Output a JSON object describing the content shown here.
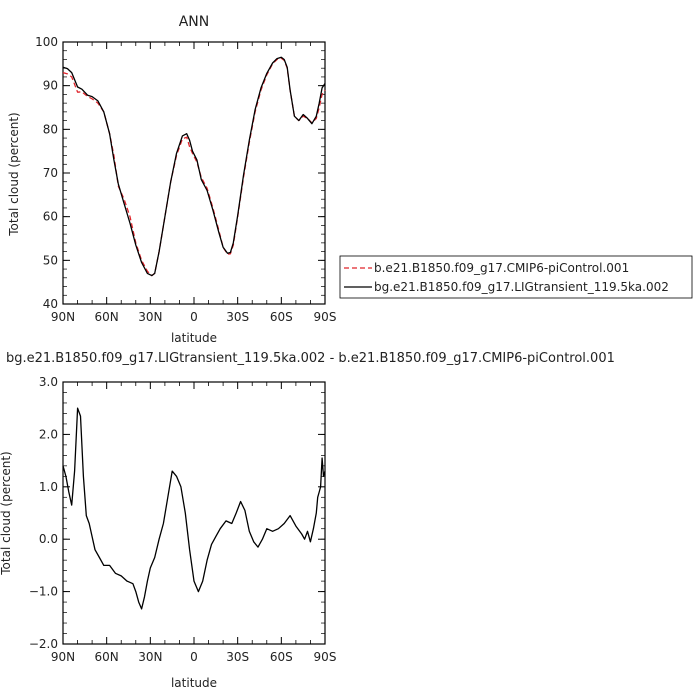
{
  "chart_data": [
    {
      "type": "line",
      "title": "ANN",
      "xlabel": "latitude",
      "ylabel": "Total cloud (percent)",
      "xlim": [
        90,
        -90
      ],
      "ylim": [
        40,
        100
      ],
      "x_ticks": [
        {
          "value": 90,
          "label": "90N"
        },
        {
          "value": 60,
          "label": "60N"
        },
        {
          "value": 30,
          "label": "30N"
        },
        {
          "value": 0,
          "label": "0"
        },
        {
          "value": -30,
          "label": "30S"
        },
        {
          "value": -60,
          "label": "60S"
        },
        {
          "value": -90,
          "label": "90S"
        }
      ],
      "y_ticks": [
        40,
        50,
        60,
        70,
        80,
        90,
        100
      ],
      "y_tick_labels": [
        "40",
        "50",
        "60",
        "70",
        "80",
        "90",
        "100"
      ],
      "legend_placement": "right",
      "series": [
        {
          "name": "b.e21.B1850.f09_g17.CMIP6-piControl.001",
          "color": "#e0242b",
          "dashed": true,
          "x": [
            90,
            87,
            84,
            80,
            77,
            73,
            70,
            66,
            62,
            58,
            55,
            52,
            48,
            44,
            40,
            36,
            32,
            29,
            27,
            24,
            20,
            16,
            12,
            8,
            5,
            3,
            1,
            -2,
            -5,
            -9,
            -13,
            -17,
            -20,
            -23,
            -25,
            -27,
            -30,
            -34,
            -38,
            -42,
            -46,
            -50,
            -54,
            -57,
            -60,
            -62,
            -64,
            -66,
            -69,
            -72,
            -75,
            -78,
            -81,
            -84,
            -86,
            -88,
            -90
          ],
          "y": [
            93,
            92.7,
            92,
            88.5,
            88.6,
            87.5,
            87,
            86,
            84,
            79,
            74,
            67,
            64,
            60,
            54,
            50,
            47.5,
            46.5,
            47,
            52,
            60,
            68,
            74,
            77.8,
            78.2,
            76,
            74.5,
            72.5,
            69,
            66.5,
            62,
            57,
            53,
            51.4,
            51.5,
            53.5,
            60,
            69,
            77,
            84,
            89,
            92.5,
            95,
            96,
            96.3,
            95.8,
            94,
            89,
            83,
            82,
            83,
            82.5,
            81.5,
            82.5,
            85,
            88,
            89
          ]
        },
        {
          "name": "bg.e21.B1850.f09_g17.LIGtransient_119.5ka.002",
          "color": "#000000",
          "dashed": false,
          "x": [
            90,
            87,
            84,
            80,
            77,
            73,
            70,
            66,
            62,
            58,
            55,
            52,
            48,
            44,
            40,
            36,
            32,
            29,
            27,
            24,
            20,
            16,
            12,
            8,
            5,
            3,
            1,
            -2,
            -5,
            -9,
            -13,
            -17,
            -20,
            -23,
            -25,
            -27,
            -30,
            -34,
            -38,
            -42,
            -46,
            -50,
            -54,
            -57,
            -60,
            -62,
            -64,
            -66,
            -69,
            -72,
            -75,
            -78,
            -81,
            -84,
            -86,
            -88,
            -90
          ],
          "y": [
            94.2,
            93.9,
            93,
            89.7,
            89.2,
            87.8,
            87.5,
            86.5,
            84,
            79,
            73,
            67.5,
            63,
            58.5,
            53.5,
            49.5,
            47,
            46.5,
            47,
            52,
            60,
            68,
            74.5,
            78.5,
            79,
            77.5,
            75,
            73,
            68.5,
            66,
            61.5,
            56.5,
            53,
            51.6,
            51.8,
            54,
            60.3,
            69.5,
            77.5,
            84.5,
            89.5,
            92.8,
            95.2,
            96.2,
            96.5,
            96,
            94.2,
            89,
            83,
            82,
            83.4,
            82.5,
            81.3,
            83,
            86,
            89.5,
            90.5
          ]
        }
      ]
    },
    {
      "type": "line",
      "title": "bg.e21.B1850.f09_g17.LIGtransient_119.5ka.002 - b.e21.B1850.f09_g17.CMIP6-piControl.001",
      "xlabel": "latitude",
      "ylabel": "Total cloud (percent)",
      "xlim": [
        90,
        -90
      ],
      "ylim": [
        -2,
        3
      ],
      "x_ticks": [
        {
          "value": 90,
          "label": "90N"
        },
        {
          "value": 60,
          "label": "60N"
        },
        {
          "value": 30,
          "label": "30N"
        },
        {
          "value": 0,
          "label": "0"
        },
        {
          "value": -30,
          "label": "30S"
        },
        {
          "value": -60,
          "label": "60S"
        },
        {
          "value": -90,
          "label": "90S"
        }
      ],
      "y_ticks": [
        -2,
        -1,
        0,
        1,
        2,
        3
      ],
      "y_tick_labels": [
        "−2.0",
        "−1.0",
        "0.0",
        "1.0",
        "2.0",
        "3.0"
      ],
      "series": [
        {
          "name": "",
          "color": "#000000",
          "dashed": false,
          "x": [
            90,
            88,
            86,
            84,
            82,
            80,
            78,
            76,
            74,
            72,
            70,
            68,
            65,
            62,
            58,
            54,
            50,
            46,
            42,
            40,
            38,
            36,
            34,
            32,
            30,
            27,
            24,
            21,
            18,
            15,
            12,
            9,
            6,
            3,
            0,
            -3,
            -6,
            -9,
            -12,
            -15,
            -18,
            -22,
            -26,
            -29,
            -32,
            -35,
            -38,
            -41,
            -44,
            -47,
            -50,
            -54,
            -58,
            -62,
            -66,
            -70,
            -74,
            -76,
            -78,
            -80,
            -82,
            -84,
            -85,
            -86,
            -87,
            -88,
            -89,
            -90
          ],
          "y": [
            1.4,
            1.2,
            0.9,
            0.65,
            1.3,
            2.5,
            2.35,
            1.2,
            0.45,
            0.3,
            0.05,
            -0.2,
            -0.35,
            -0.5,
            -0.5,
            -0.65,
            -0.7,
            -0.8,
            -0.85,
            -1.0,
            -1.2,
            -1.33,
            -1.1,
            -0.8,
            -0.55,
            -0.35,
            0.0,
            0.3,
            0.8,
            1.3,
            1.2,
            1.0,
            0.5,
            -0.2,
            -0.8,
            -1.0,
            -0.8,
            -0.4,
            -0.1,
            0.05,
            0.2,
            0.35,
            0.3,
            0.5,
            0.72,
            0.55,
            0.15,
            -0.05,
            -0.15,
            0.0,
            0.2,
            0.15,
            0.2,
            0.3,
            0.45,
            0.25,
            0.1,
            0.0,
            0.15,
            -0.05,
            0.2,
            0.5,
            0.8,
            0.9,
            1.0,
            1.55,
            1.2,
            1.3
          ]
        }
      ]
    }
  ]
}
